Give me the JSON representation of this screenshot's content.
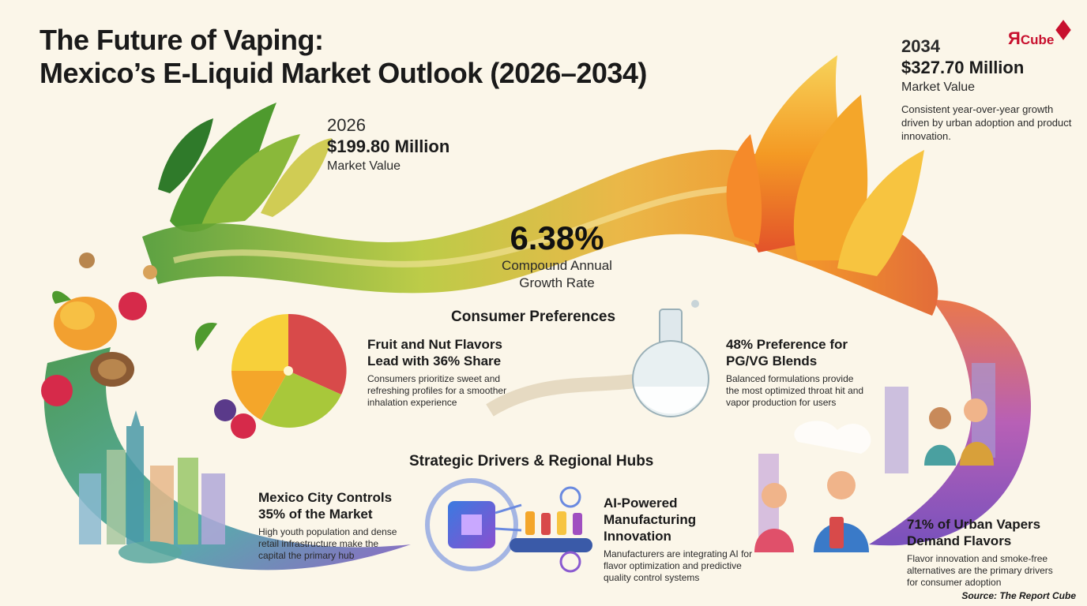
{
  "header": {
    "title_line1": "The Future of Vaping:",
    "title_line2": "Mexico’s E-Liquid Market Outlook (2026–2034)"
  },
  "logo": {
    "mark": "Я",
    "text": "Cube"
  },
  "stats": {
    "start": {
      "year": "2026",
      "value": "$199.80 Million",
      "label": "Market Value"
    },
    "end": {
      "year": "2034",
      "value": "$327.70 Million",
      "label": "Market Value",
      "description": "Consistent year-over-year growth driven by urban adoption and product innovation."
    },
    "cagr": {
      "value": "6.38%",
      "label_line1": "Compound Annual",
      "label_line2": "Growth Rate"
    }
  },
  "consumer_preferences": {
    "heading": "Consumer Preferences",
    "flavors": {
      "title_line1": "Fruit and Nut Flavors",
      "title_line2": "Lead with 36% Share",
      "description": "Consumers prioritize sweet and refreshing profiles for a smoother inhalation experience"
    },
    "blends": {
      "title_line1": "48% Preference for",
      "title_line2": "PG/VG Blends",
      "description": "Balanced formulations provide the most optimized throat hit and vapor production for users"
    }
  },
  "strategic_drivers": {
    "heading": "Strategic Drivers & Regional Hubs",
    "mexico_city": {
      "title_line1": "Mexico City Controls",
      "title_line2": "35% of the Market",
      "description": "High youth population and dense retail infrastructure make the capital the primary hub"
    },
    "ai": {
      "title_line1": "AI-Powered",
      "title_line2": "Manufacturing",
      "title_line3": "Innovation",
      "description": "Manufacturers are integrating AI for flavor optimization and predictive quality control systems"
    },
    "urban": {
      "title_line1": "71% of Urban Vapers",
      "title_line2": "Demand Flavors",
      "description": "Flavor innovation and smoke-free alternatives are the primary drivers for consumer adoption"
    }
  },
  "footer": {
    "source": "Source: The Report Cube"
  },
  "colors": {
    "background": "#fbf6e9",
    "brand_red": "#c8102e",
    "green": "#5a9a2a",
    "orange": "#f08a1c",
    "purple": "#8a4fc0"
  }
}
